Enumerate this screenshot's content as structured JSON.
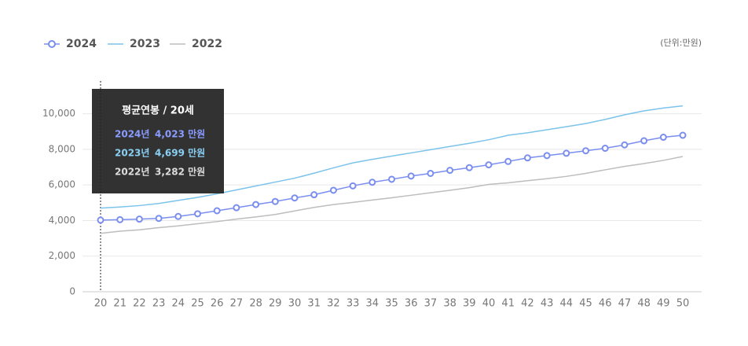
{
  "chart_data": {
    "type": "line",
    "unit_label": "(단위:만원)",
    "categories": [
      "20",
      "21",
      "22",
      "23",
      "24",
      "25",
      "26",
      "27",
      "28",
      "29",
      "30",
      "31",
      "32",
      "33",
      "34",
      "35",
      "36",
      "37",
      "38",
      "39",
      "40",
      "41",
      "42",
      "43",
      "44",
      "45",
      "46",
      "47",
      "48",
      "49",
      "50"
    ],
    "series": [
      {
        "name": "2024",
        "color": "#7a8ef0",
        "markers": true,
        "values": [
          4023,
          4050,
          4080,
          4120,
          4230,
          4380,
          4550,
          4720,
          4900,
          5070,
          5270,
          5450,
          5700,
          5950,
          6150,
          6320,
          6500,
          6650,
          6820,
          6970,
          7130,
          7320,
          7520,
          7650,
          7780,
          7920,
          8060,
          8250,
          8480,
          8680,
          8790
        ]
      },
      {
        "name": "2023",
        "color": "#7cc3ea",
        "markers": false,
        "values": [
          4699,
          4760,
          4840,
          4960,
          5130,
          5300,
          5500,
          5720,
          5940,
          6160,
          6380,
          6660,
          6960,
          7240,
          7440,
          7620,
          7800,
          7980,
          8160,
          8340,
          8540,
          8790,
          8930,
          9100,
          9270,
          9450,
          9680,
          9940,
          10160,
          10320,
          10440
        ]
      },
      {
        "name": "2022",
        "color": "#bdbdbd",
        "markers": false,
        "values": [
          3282,
          3400,
          3480,
          3600,
          3700,
          3820,
          3940,
          4080,
          4200,
          4340,
          4540,
          4740,
          4900,
          5020,
          5150,
          5280,
          5420,
          5560,
          5700,
          5850,
          6030,
          6120,
          6240,
          6350,
          6480,
          6650,
          6850,
          7040,
          7200,
          7380,
          7600
        ]
      }
    ],
    "ylim": [
      0,
      11000
    ],
    "yticks": [
      0,
      {
        "value": 2000,
        "label": "2,000"
      },
      {
        "value": 4000,
        "label": "4,000"
      },
      {
        "value": 6000,
        "label": "6,000"
      },
      {
        "value": 8000,
        "label": "8,000"
      },
      {
        "value": 10000,
        "label": "10,000"
      }
    ],
    "grid": true,
    "tooltip": {
      "title": "평균연봉 / 20세",
      "rows": [
        {
          "label": "2024년",
          "value": "4,023 만원",
          "color": "#8a9cff"
        },
        {
          "label": "2023년",
          "value": "4,699 만원",
          "color": "#8ad0f5"
        },
        {
          "label": "2022년",
          "value": "3,282 만원",
          "color": "#dddddd"
        }
      ]
    }
  }
}
